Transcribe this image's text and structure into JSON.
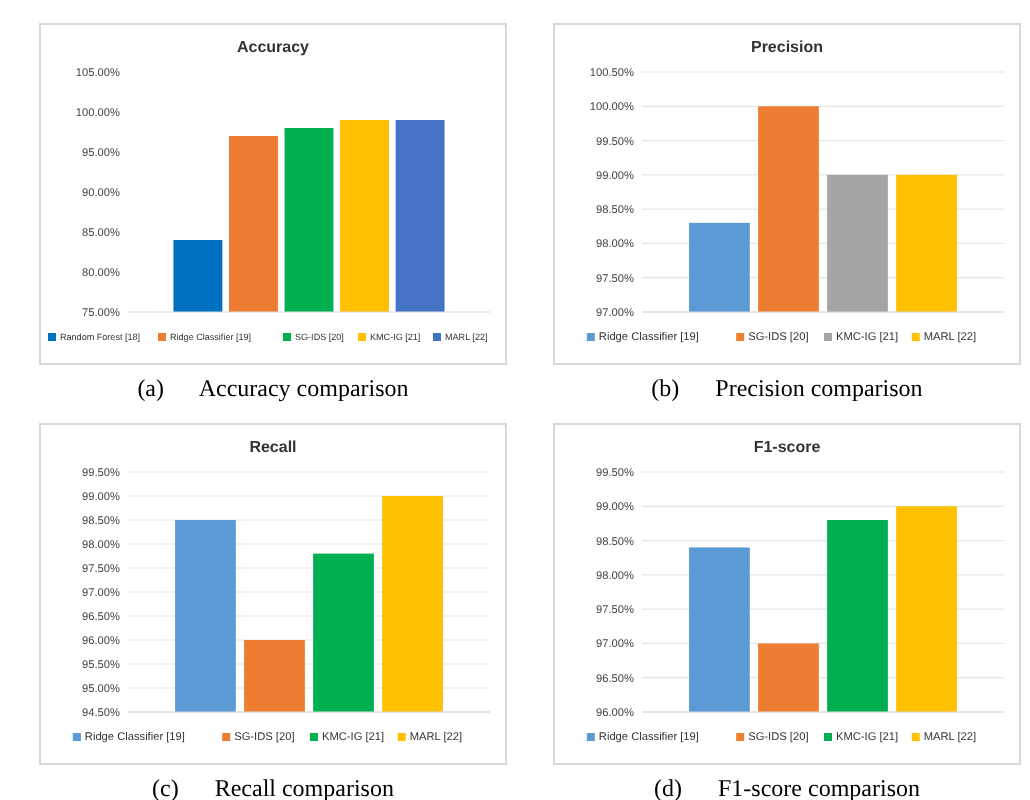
{
  "chart_data": [
    {
      "type": "bar",
      "title": "Accuracy",
      "categories": [
        null
      ],
      "series": [
        {
          "name": "Random Forest [18]",
          "color": "#0070c0",
          "values": [
            84
          ]
        },
        {
          "name": "Ridge Classifier [19]",
          "color": "#ed7d31",
          "values": [
            97
          ]
        },
        {
          "name": "SG-IDS [20]",
          "color": "#00b050",
          "values": [
            98
          ]
        },
        {
          "name": "KMC-IG [21]",
          "color": "#ffc000",
          "values": [
            99
          ]
        },
        {
          "name": "MARL [22]",
          "color": "#4472c4",
          "values": [
            99
          ]
        }
      ],
      "ylim": [
        75,
        105
      ],
      "yticks": [
        {
          "value": 75,
          "label": "75.00%"
        },
        {
          "value": 80,
          "label": "80.00%"
        },
        {
          "value": 85,
          "label": "85.00%"
        },
        {
          "value": 90,
          "label": "90.00%"
        },
        {
          "value": 95,
          "label": "95.00%"
        },
        {
          "value": 100,
          "label": "100.00%"
        },
        {
          "value": 105,
          "label": "105.00%"
        }
      ],
      "grid": false,
      "legend": "bottom",
      "annotations": [
        "(a)      Accuracy comparison"
      ]
    },
    {
      "type": "bar",
      "title": "Precision",
      "categories": [
        null
      ],
      "series": [
        {
          "name": "Ridge Classifier [19]",
          "color": "#5b9bd5",
          "values": [
            98.3
          ]
        },
        {
          "name": "SG-IDS [20]",
          "color": "#ed7d31",
          "values": [
            100
          ]
        },
        {
          "name": "KMC-IG [21]",
          "color": "#a5a5a5",
          "values": [
            99
          ]
        },
        {
          "name": "MARL [22]",
          "color": "#ffc000",
          "values": [
            99
          ]
        }
      ],
      "ylim": [
        97,
        100.5
      ],
      "yticks": [
        {
          "value": 97,
          "label": "97.00%"
        },
        {
          "value": 97.5,
          "label": "97.50%"
        },
        {
          "value": 98,
          "label": "98.00%"
        },
        {
          "value": 98.5,
          "label": "98.50%"
        },
        {
          "value": 99,
          "label": "99.00%"
        },
        {
          "value": 99.5,
          "label": "99.50%"
        },
        {
          "value": 100,
          "label": "100.00%"
        },
        {
          "value": 100.5,
          "label": "100.50%"
        }
      ],
      "grid": "y",
      "legend": "bottom",
      "annotations": [
        "(b)      Precision comparison"
      ]
    },
    {
      "type": "bar",
      "title": "Recall",
      "categories": [
        null
      ],
      "series": [
        {
          "name": "Ridge Classifier [19]",
          "color": "#5b9bd5",
          "values": [
            98.5
          ]
        },
        {
          "name": "SG-IDS [20]",
          "color": "#ed7d31",
          "values": [
            96
          ]
        },
        {
          "name": "KMC-IG [21]",
          "color": "#00b050",
          "values": [
            97.8
          ]
        },
        {
          "name": "MARL [22]",
          "color": "#ffc000",
          "values": [
            99
          ]
        }
      ],
      "ylim": [
        94.5,
        99.5
      ],
      "yticks": [
        {
          "value": 94.5,
          "label": "94.50%"
        },
        {
          "value": 95,
          "label": "95.00%"
        },
        {
          "value": 95.5,
          "label": "95.50%"
        },
        {
          "value": 96,
          "label": "96.00%"
        },
        {
          "value": 96.5,
          "label": "96.50%"
        },
        {
          "value": 97,
          "label": "97.00%"
        },
        {
          "value": 97.5,
          "label": "97.50%"
        },
        {
          "value": 98,
          "label": "98.00%"
        },
        {
          "value": 98.5,
          "label": "98.50%"
        },
        {
          "value": 99,
          "label": "99.00%"
        },
        {
          "value": 99.5,
          "label": "99.50%"
        }
      ],
      "grid": "y",
      "legend": "bottom",
      "annotations": [
        "(c)      Recall comparison"
      ]
    },
    {
      "type": "bar",
      "title": "F1-score",
      "categories": [
        null
      ],
      "series": [
        {
          "name": "Ridge Classifier [19]",
          "color": "#5b9bd5",
          "values": [
            98.4
          ]
        },
        {
          "name": "SG-IDS [20]",
          "color": "#ed7d31",
          "values": [
            97
          ]
        },
        {
          "name": "KMC-IG [21]",
          "color": "#00b050",
          "values": [
            98.8
          ]
        },
        {
          "name": "MARL [22]",
          "color": "#ffc000",
          "values": [
            99
          ]
        }
      ],
      "ylim": [
        96,
        99.5
      ],
      "yticks": [
        {
          "value": 96,
          "label": "96.00%"
        },
        {
          "value": 96.5,
          "label": "96.50%"
        },
        {
          "value": 97,
          "label": "97.00%"
        },
        {
          "value": 97.5,
          "label": "97.50%"
        },
        {
          "value": 98,
          "label": "98.00%"
        },
        {
          "value": 98.5,
          "label": "98.50%"
        },
        {
          "value": 99,
          "label": "99.00%"
        },
        {
          "value": 99.5,
          "label": "99.50%"
        }
      ],
      "grid": "y",
      "legend": "bottom",
      "annotations": [
        "(d)      F1-score comparison"
      ]
    }
  ]
}
